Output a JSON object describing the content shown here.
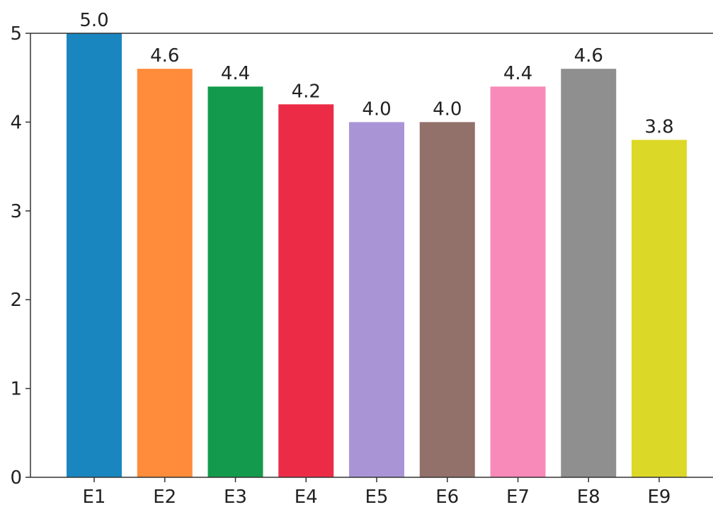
{
  "chart_data": {
    "type": "bar",
    "categories": [
      "E1",
      "E2",
      "E3",
      "E4",
      "E5",
      "E6",
      "E7",
      "E8",
      "E9"
    ],
    "values": [
      5.0,
      4.6,
      4.4,
      4.2,
      4.0,
      4.0,
      4.4,
      4.6,
      3.8
    ],
    "value_labels": [
      "5.0",
      "4.6",
      "4.4",
      "4.2",
      "4.0",
      "4.0",
      "4.4",
      "4.6",
      "3.8"
    ],
    "colors": [
      "#1a86c0",
      "#ff8c3a",
      "#149a4c",
      "#ec2c46",
      "#a995d6",
      "#92716a",
      "#f78ab8",
      "#8f8f8f",
      "#dcd828"
    ],
    "ylim": [
      0,
      5
    ],
    "yticks": [
      0,
      1,
      2,
      3,
      4,
      5
    ],
    "ytick_labels": [
      "0",
      "1",
      "2",
      "3",
      "4",
      "5"
    ],
    "grid": false,
    "title": "",
    "xlabel": "",
    "ylabel": ""
  }
}
